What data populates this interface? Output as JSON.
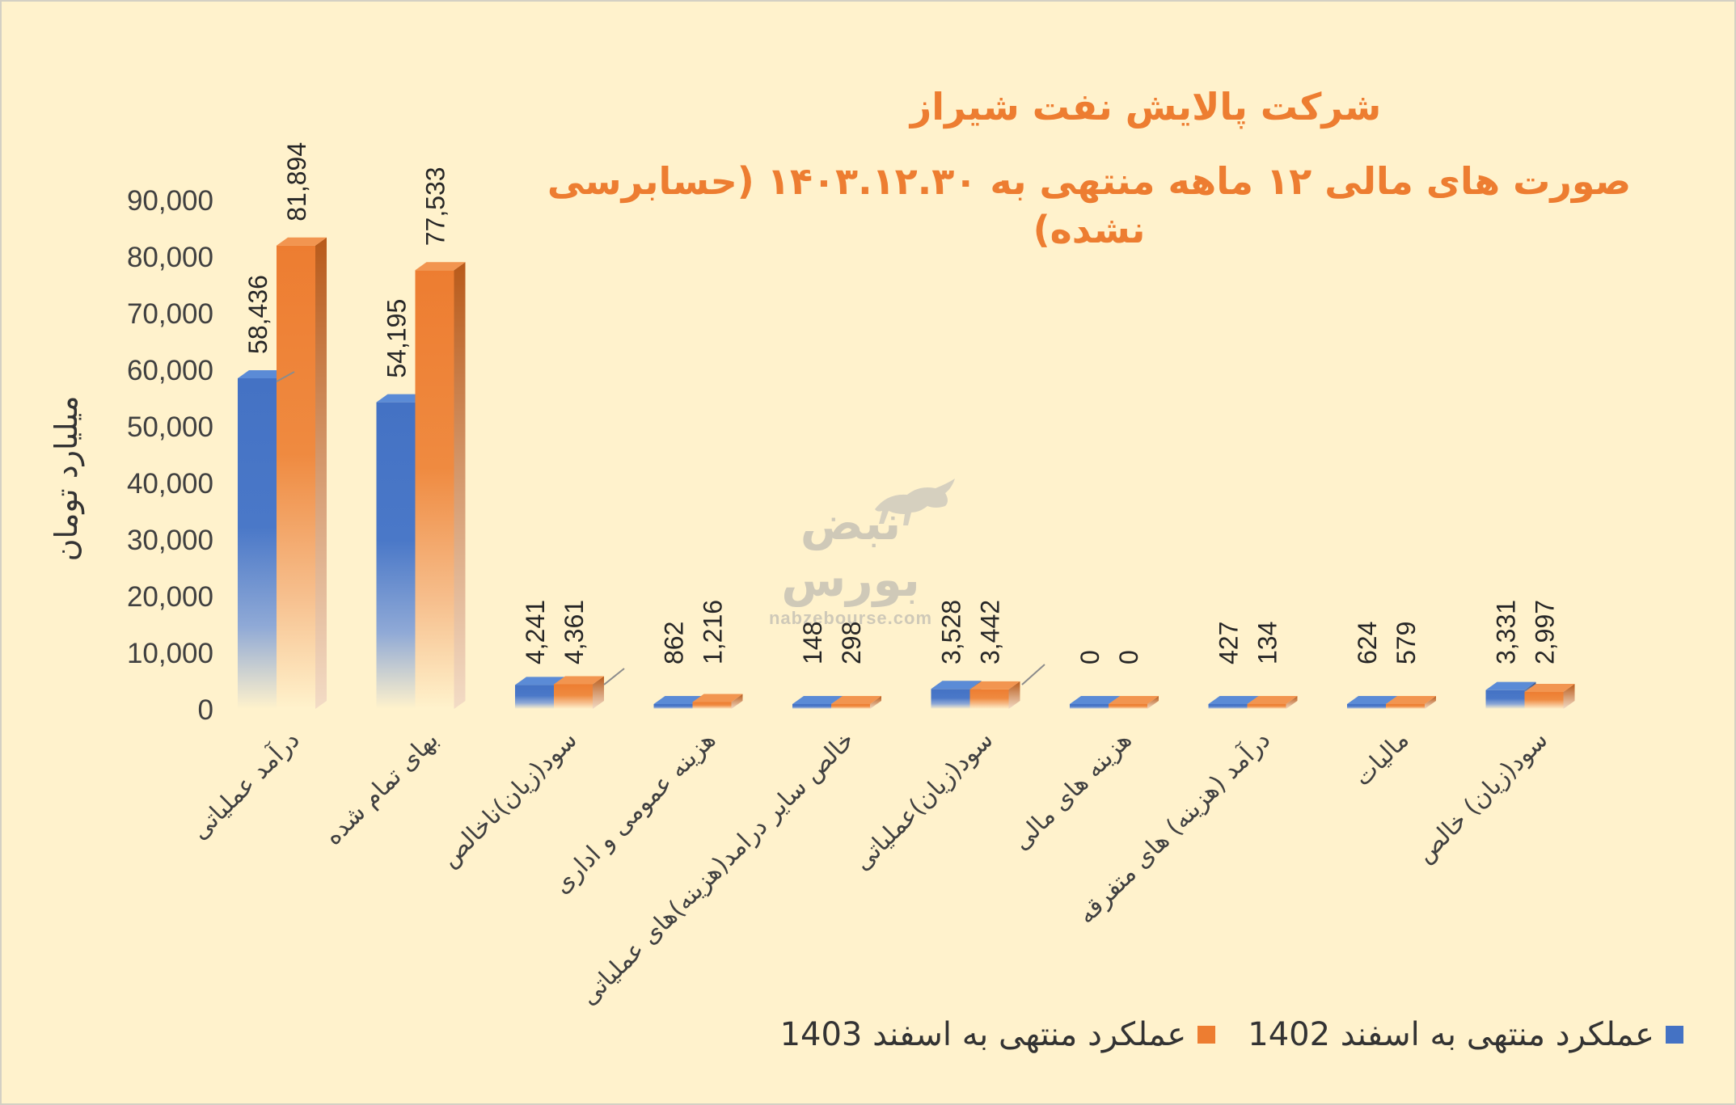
{
  "chart_data": {
    "type": "bar",
    "title": "شرکت پالایش نفت شیراز",
    "subtitle": "صورت های مالی ۱۲ ماهه منتهی به ۱۴۰۳.۱۲.۳۰ (حسابرسی نشده)",
    "ylabel": "میلیارد تومان",
    "xlabel": "",
    "ylim": [
      0,
      90000
    ],
    "yticks": [
      "0",
      "10,000",
      "20,000",
      "30,000",
      "40,000",
      "50,000",
      "60,000",
      "70,000",
      "80,000",
      "90,000"
    ],
    "categories": [
      "درآمد عملیاتی",
      "بهای تمام شده",
      "سود(زیان)ناخالص",
      "هزینه عمومی و اداری",
      "خالص سایر درامد(هزینه)های عملیاتی",
      "سود(زیان)عملیاتی",
      "هزینه های مالی",
      "درآمد (هزینه) های متفرقه",
      "مالیات",
      "سود(زیان) خالص"
    ],
    "series": [
      {
        "name": "عملکرد منتهی به اسفند 1402",
        "color": "#4472c4",
        "values": [
          58436,
          54195,
          4241,
          862,
          148,
          3528,
          0,
          427,
          624,
          3331
        ],
        "labels": [
          "58,436",
          "54,195",
          "4,241",
          "862",
          "148",
          "3,528",
          "0",
          "427",
          "624",
          "3,331"
        ]
      },
      {
        "name": "عملکرد منتهی به اسفند 1403",
        "color": "#ed7d31",
        "values": [
          81894,
          77533,
          4361,
          1216,
          298,
          3442,
          0,
          134,
          579,
          2997
        ],
        "labels": [
          "81,894",
          "77,533",
          "4,361",
          "1,216",
          "298",
          "3,442",
          "0",
          "134",
          "579",
          "2,997"
        ]
      }
    ],
    "legend_position": "bottom-right",
    "grid": false
  },
  "watermark": {
    "logo_text": "نبض بورس",
    "url": "nabzebourse.com"
  }
}
